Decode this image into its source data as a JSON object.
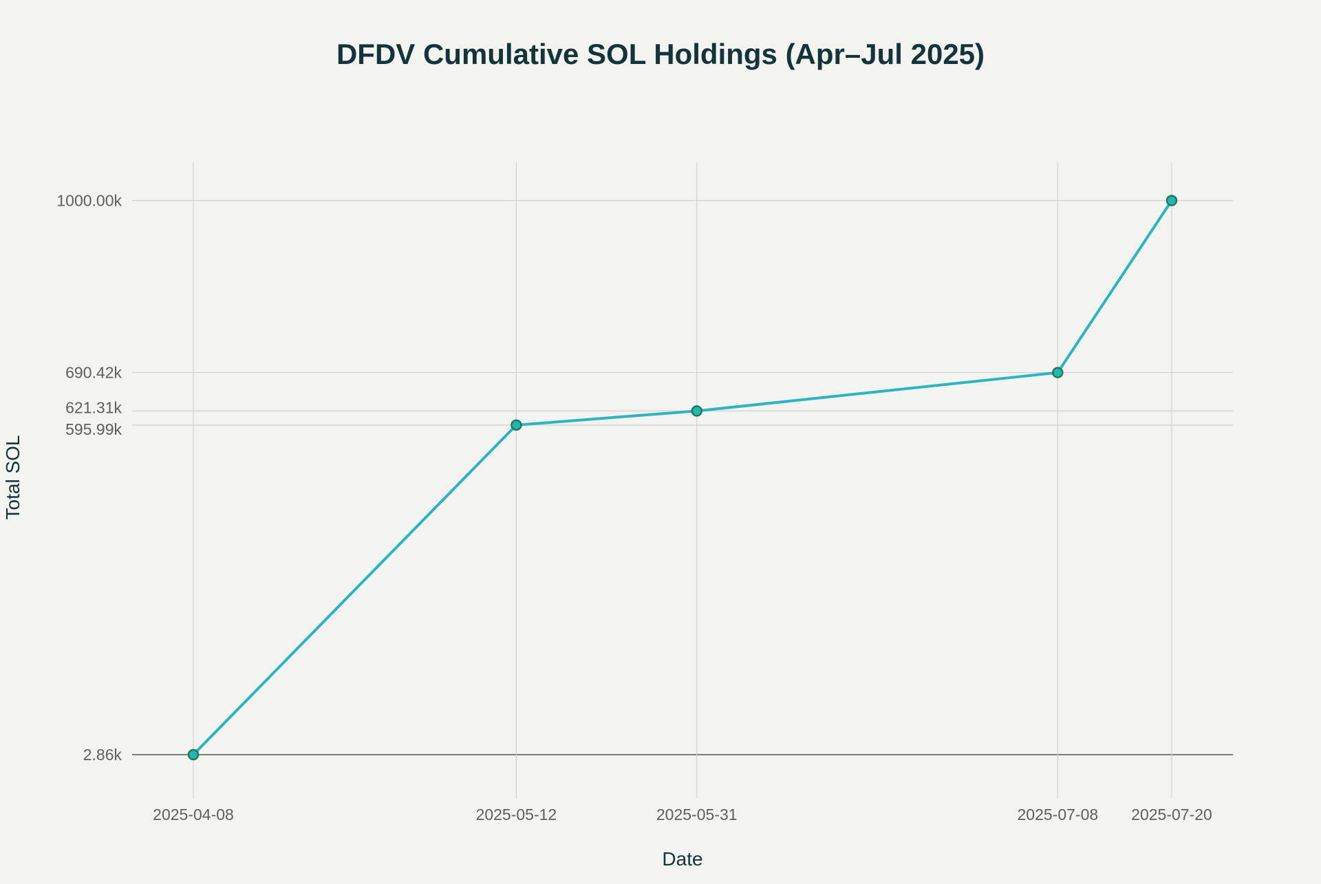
{
  "chart_data": {
    "type": "line",
    "title": "DFDV Cumulative SOL Holdings (Apr–Jul 2025)",
    "xlabel": "Date",
    "ylabel": "Total SOL",
    "x": [
      "2025-04-08",
      "2025-05-12",
      "2025-05-31",
      "2025-07-08",
      "2025-07-20"
    ],
    "x_tick_labels": [
      "2025-04-08",
      "2025-05-12",
      "2025-05-31",
      "2025-07-08",
      "2025-07-20"
    ],
    "values": [
      2.86,
      595.99,
      621.31,
      690.42,
      1000.0
    ],
    "y_unit": "k SOL",
    "y_tick_labels": [
      "2.86k",
      "595.99k",
      "621.31k",
      "690.42k",
      "1000.00k"
    ],
    "y_ticks": [
      2.86,
      595.99,
      621.31,
      690.42,
      1000.0
    ],
    "ylim": [
      2.86,
      1000.0
    ],
    "grid": true,
    "legend": "none",
    "colors": {
      "line": "#2bb5c3",
      "marker_fill": "#22b6b4",
      "marker_edge": "#1e7a57",
      "background": "#f3f3ef",
      "title": "#13343b"
    }
  }
}
